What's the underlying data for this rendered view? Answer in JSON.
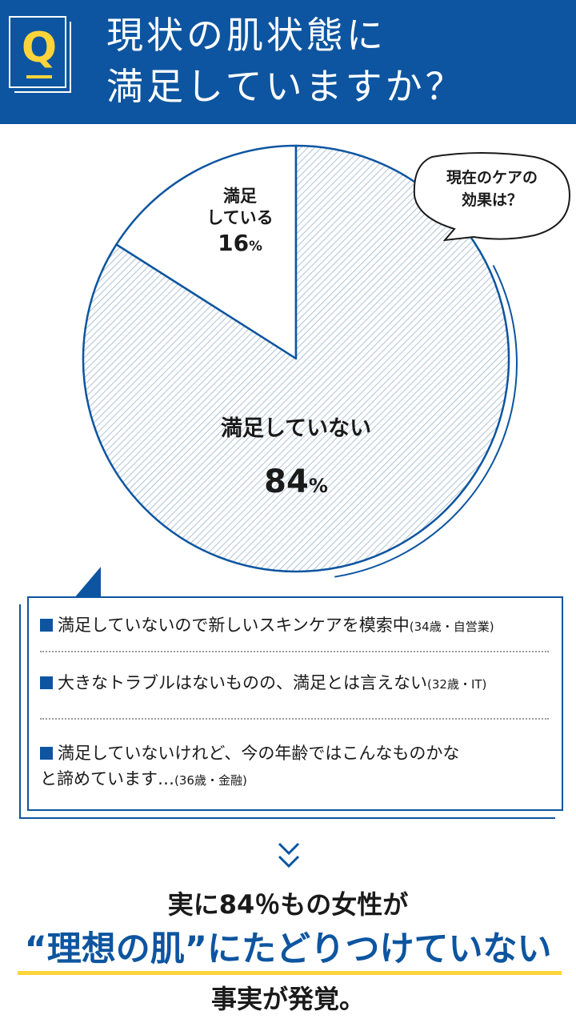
{
  "header": {
    "badge_letter": "Q",
    "title_line1": "現状の肌状態に",
    "title_line2": "満足していますか？"
  },
  "colors": {
    "brand_blue": "#0d55a0",
    "accent_yellow": "#ffd43b",
    "hatch": "#9db3cc"
  },
  "chart_data": {
    "type": "pie",
    "slices": [
      {
        "label_line1": "満足",
        "label_line2": "している",
        "value": 16,
        "pct_text": "16",
        "unit": "%"
      },
      {
        "label": "満足していない",
        "value": 84,
        "pct_text": "84",
        "unit": "%"
      }
    ]
  },
  "bubble": {
    "line1": "現在のケアの",
    "line2": "効果は？"
  },
  "comments": [
    {
      "text": "満足していないので新しいスキンケアを模索中",
      "meta": "(34歳・自営業)"
    },
    {
      "text": "大きなトラブルはないものの、満足とは言えない",
      "meta": "(32歳・IT)"
    },
    {
      "text_line1": "満足していないけれど、今の年齢ではこんなものかな",
      "text_line2": "と諦めています…",
      "meta": "(36歳・金融)"
    }
  ],
  "conclusion": {
    "line1": "実に84％もの女性が",
    "line2": "“理想の肌”にたどりつけていない",
    "line3": "事実が発覚。"
  }
}
